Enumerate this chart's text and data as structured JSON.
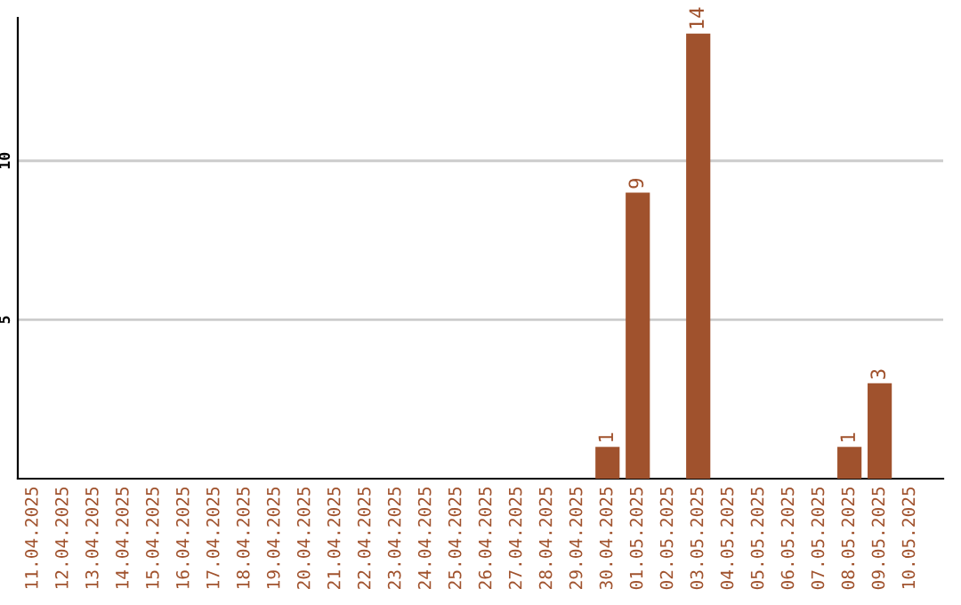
{
  "chart_data": {
    "type": "bar",
    "categories": [
      "11.04.2025",
      "12.04.2025",
      "13.04.2025",
      "14.04.2025",
      "15.04.2025",
      "16.04.2025",
      "17.04.2025",
      "18.04.2025",
      "19.04.2025",
      "20.04.2025",
      "21.04.2025",
      "22.04.2025",
      "23.04.2025",
      "24.04.2025",
      "25.04.2025",
      "26.04.2025",
      "27.04.2025",
      "28.04.2025",
      "29.04.2025",
      "30.04.2025",
      "01.05.2025",
      "02.05.2025",
      "03.05.2025",
      "04.05.2025",
      "05.05.2025",
      "06.05.2025",
      "07.05.2025",
      "08.05.2025",
      "09.05.2025",
      "10.05.2025"
    ],
    "values": [
      0,
      0,
      0,
      0,
      0,
      0,
      0,
      0,
      0,
      0,
      0,
      0,
      0,
      0,
      0,
      0,
      0,
      0,
      0,
      1,
      9,
      0,
      14,
      0,
      0,
      0,
      0,
      1,
      3,
      0
    ],
    "value_labels": [
      null,
      null,
      null,
      null,
      null,
      null,
      null,
      null,
      null,
      null,
      null,
      null,
      null,
      null,
      null,
      null,
      null,
      null,
      null,
      "1",
      "9",
      null,
      "14",
      null,
      null,
      null,
      null,
      "1",
      "3",
      null
    ],
    "color": "#a0522d",
    "ylim": [
      0,
      14.5
    ],
    "yticks": [
      5,
      10
    ],
    "grid": "y"
  }
}
